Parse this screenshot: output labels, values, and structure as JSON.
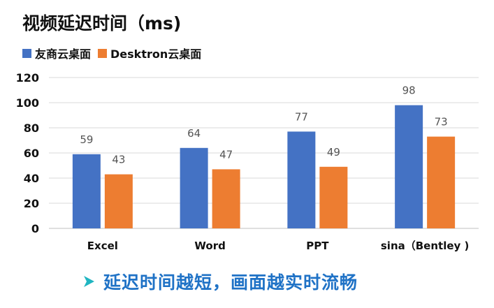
{
  "colors": {
    "series_1": "#4472c4",
    "series_2": "#ed7d31",
    "footer_text": "#1f72c6",
    "footer_icon": "#1fb5c1"
  },
  "footer": {
    "icon": "play-triangle-icon",
    "text": "延迟时间越短，画面越实时流畅"
  },
  "chart_data": {
    "type": "bar",
    "title": "视频延迟时间（ms)",
    "categories": [
      "Excel",
      "Word",
      "PPT",
      "sina（Bentley )"
    ],
    "series": [
      {
        "name": "友商云桌面",
        "values": [
          59,
          64,
          77,
          98
        ]
      },
      {
        "name": "Desktron云桌面",
        "values": [
          43,
          47,
          49,
          73
        ]
      }
    ],
    "yticks": [
      "0",
      "20",
      "40",
      "60",
      "80",
      "100",
      "120"
    ],
    "ylim": [
      0,
      120
    ],
    "xlabel": "",
    "ylabel": "",
    "grid": true,
    "legend_position": "top-left"
  }
}
